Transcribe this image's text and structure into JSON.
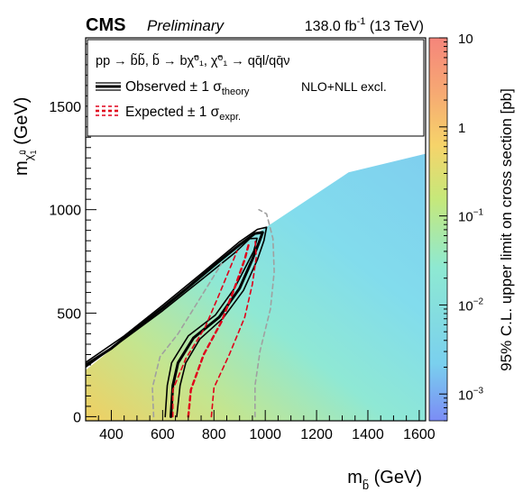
{
  "header": {
    "experiment": "CMS",
    "status": "Preliminary",
    "lumi_value": "138.0 fb",
    "lumi_exp": "-1",
    "lumi_energy": " (13 TeV)"
  },
  "chart_data": {
    "type": "heatmap",
    "xlabel": "m",
    "xlabel_sub": "b̃",
    "xlabel_unit": " (GeV)",
    "ylabel": "m",
    "ylabel_sub": "χ̃",
    "ylabel_sub_sup": "0",
    "ylabel_sub_idx": "1",
    "ylabel_unit": " (GeV)",
    "zlabel": "95% C.L. upper limit on cross section [pb]",
    "xlim": [
      300,
      1625
    ],
    "ylim": [
      -20,
      1830
    ],
    "zlim": [
      0.0005,
      10
    ],
    "zscale": "log",
    "x_ticks": [
      400,
      600,
      800,
      1000,
      1200,
      1400,
      1600
    ],
    "y_ticks": [
      0,
      500,
      1000,
      1500
    ],
    "z_ticks": [
      {
        "value": 10,
        "base": "10",
        "exp": ""
      },
      {
        "value": 1,
        "base": "1",
        "exp": ""
      },
      {
        "value": 0.1,
        "base": "10",
        "exp": "−1"
      },
      {
        "value": 0.01,
        "base": "10",
        "exp": "−2"
      },
      {
        "value": 0.001,
        "base": "10",
        "exp": "−3"
      }
    ],
    "legend": {
      "placement": "top",
      "process": "pp → b̃b̃, b̃ → bχ̃⁰₁, χ̃⁰₁ → qq̄l/qq̄ν",
      "observed_label": "Observed ± 1 σ",
      "observed_sub": "theory",
      "expected_label": "Expected ± 1 σ",
      "expected_sub": "expr.",
      "xsec_label": "NLO+NLL excl."
    },
    "series": [
      {
        "name": "Observed",
        "color": "#000000",
        "style": "solid",
        "points": [
          [
            300,
            250
          ],
          [
            400,
            330
          ],
          [
            500,
            430
          ],
          [
            600,
            525
          ],
          [
            700,
            625
          ],
          [
            800,
            730
          ],
          [
            900,
            830
          ],
          [
            960,
            885
          ],
          [
            990,
            890
          ],
          [
            975,
            840
          ],
          [
            950,
            760
          ],
          [
            900,
            620
          ],
          [
            820,
            480
          ],
          [
            720,
            380
          ],
          [
            660,
            260
          ],
          [
            640,
            150
          ],
          [
            632,
            0
          ]
        ]
      },
      {
        "name": "Observed +1 σ theory",
        "color": "#000000",
        "style": "thin",
        "points": [
          [
            300,
            262
          ],
          [
            450,
            390
          ],
          [
            600,
            538
          ],
          [
            750,
            690
          ],
          [
            900,
            845
          ],
          [
            970,
            905
          ],
          [
            1005,
            915
          ],
          [
            995,
            850
          ],
          [
            970,
            760
          ],
          [
            915,
            610
          ],
          [
            835,
            475
          ],
          [
            745,
            375
          ],
          [
            690,
            260
          ],
          [
            668,
            150
          ],
          [
            655,
            0
          ]
        ]
      },
      {
        "name": "Observed −1 σ theory",
        "color": "#000000",
        "style": "thin",
        "points": [
          [
            300,
            240
          ],
          [
            450,
            375
          ],
          [
            600,
            512
          ],
          [
            750,
            660
          ],
          [
            880,
            790
          ],
          [
            940,
            860
          ],
          [
            968,
            862
          ],
          [
            955,
            800
          ],
          [
            930,
            740
          ],
          [
            880,
            620
          ],
          [
            805,
            490
          ],
          [
            700,
            390
          ],
          [
            635,
            260
          ],
          [
            618,
            150
          ],
          [
            610,
            0
          ]
        ]
      },
      {
        "name": "Expected",
        "color": "#e0001a",
        "style": "dashed",
        "points": [
          [
            700,
            0
          ],
          [
            710,
            130
          ],
          [
            760,
            300
          ],
          [
            830,
            460
          ],
          [
            880,
            620
          ],
          [
            920,
            760
          ],
          [
            935,
            830
          ]
        ]
      },
      {
        "name": "Expected +1 σ expr.",
        "color": "#e0001a",
        "style": "dashed-thin",
        "points": [
          [
            790,
            0
          ],
          [
            800,
            140
          ],
          [
            860,
            300
          ],
          [
            920,
            480
          ],
          [
            950,
            640
          ],
          [
            965,
            770
          ],
          [
            960,
            860
          ]
        ]
      },
      {
        "name": "Expected −1 σ expr.",
        "color": "#e0001a",
        "style": "dashed-thin",
        "points": [
          [
            640,
            0
          ],
          [
            640,
            130
          ],
          [
            690,
            280
          ],
          [
            765,
            430
          ],
          [
            820,
            590
          ],
          [
            870,
            740
          ],
          [
            890,
            800
          ]
        ]
      },
      {
        "name": "Expected +2 σ",
        "color": "#a0a0a0",
        "style": "dashed-thin",
        "points": [
          [
            960,
            0
          ],
          [
            960,
            150
          ],
          [
            980,
            320
          ],
          [
            1020,
            520
          ],
          [
            1035,
            700
          ],
          [
            1030,
            860
          ],
          [
            1005,
            980
          ],
          [
            975,
            1000
          ]
        ]
      },
      {
        "name": "Expected −2 σ",
        "color": "#a0a0a0",
        "style": "dashed-thin",
        "points": [
          [
            565,
            0
          ],
          [
            560,
            140
          ],
          [
            590,
            290
          ],
          [
            660,
            400
          ],
          [
            720,
            520
          ],
          [
            770,
            620
          ],
          [
            830,
            740
          ]
        ]
      }
    ]
  }
}
